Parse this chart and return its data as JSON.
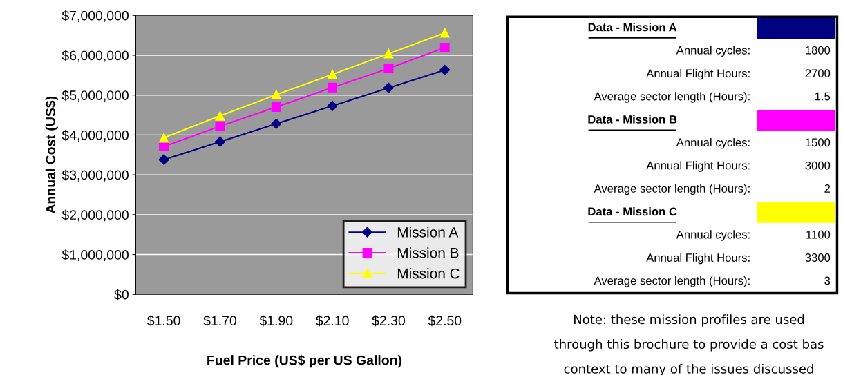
{
  "chart_data": [
    {
      "type": "line",
      "xlabel": "Fuel Price (US$ per US Gallon)",
      "ylabel": "Annual Cost (US$)",
      "categories": [
        "$1.50",
        "$1.70",
        "$1.90",
        "$2.10",
        "$2.30",
        "$2.50"
      ],
      "series": [
        {
          "name": "Mission A",
          "color": "#000080",
          "marker": "diamond",
          "values": [
            3380000,
            3830000,
            4280000,
            4730000,
            5180000,
            5630000
          ]
        },
        {
          "name": "Mission B",
          "color": "#ff00ff",
          "marker": "square",
          "values": [
            3710000,
            4220000,
            4700000,
            5190000,
            5670000,
            6190000
          ]
        },
        {
          "name": "Mission C",
          "color": "#ffff00",
          "marker": "triangle",
          "values": [
            3930000,
            4480000,
            5010000,
            5520000,
            6040000,
            6560000
          ]
        }
      ],
      "ylim": [
        0,
        7000000
      ],
      "yticks": [
        {
          "value": 0,
          "label": "$0"
        },
        {
          "value": 1000000,
          "label": "$1,000,000"
        },
        {
          "value": 2000000,
          "label": "$2,000,000"
        },
        {
          "value": 3000000,
          "label": "$3,000,000"
        },
        {
          "value": 4000000,
          "label": "$4,000,000"
        },
        {
          "value": 5000000,
          "label": "$5,000,000"
        },
        {
          "value": 6000000,
          "label": "$6,000,000"
        },
        {
          "value": 7000000,
          "label": "$7,000,000"
        }
      ],
      "grid": "y",
      "legend": "bottom right",
      "line_style": "solid"
    },
    {
      "type": "other",
      "colors": [
        "#000080",
        "#ff00ff",
        "#ffff00"
      ],
      "annotations": [
        "Data - Mission A",
        "Annual cycles:",
        "1800",
        "Annual Flight Hours:",
        "2700",
        "Average sector length (Hours):",
        "1.5",
        "Data - Mission B",
        "Annual cycles:",
        "1500",
        "Annual Flight Hours:",
        "3000",
        "Average sector length (Hours):",
        "2",
        "Data - Mission C",
        "Annual cycles:",
        "1100",
        "Annual Flight Hours:",
        "3300",
        "Average sector length (Hours):",
        "3",
        "Note: these mission profiles are used",
        "through this brochure to provide a cost bas",
        "context to many of the issues discussed"
      ]
    }
  ]
}
